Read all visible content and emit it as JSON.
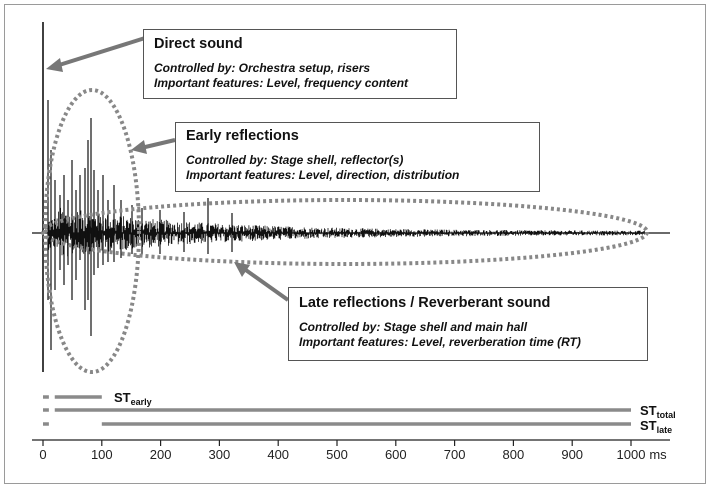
{
  "annotations": {
    "direct": {
      "title": "Direct sound",
      "controlled": "Controlled by: Orchestra setup, risers",
      "features": "Important features: Level, frequency content"
    },
    "early": {
      "title": "Early reflections",
      "controlled": "Controlled by: Stage shell, reflector(s)",
      "features": "Important features: Level, direction, distribution"
    },
    "late": {
      "title": "Late reflections / Reverberant sound",
      "controlled": "Controlled by: Stage shell and main hall",
      "features": "Important features: Level, reverberation time (RT)"
    }
  },
  "st_bars": [
    {
      "main": "ST",
      "sub": "early",
      "dash_ms": [
        0,
        10
      ],
      "bar_ms": [
        20,
        100
      ]
    },
    {
      "main": "ST",
      "sub": "total",
      "dash_ms": [
        0,
        10
      ],
      "bar_ms": [
        20,
        1000
      ]
    },
    {
      "main": "ST",
      "sub": "late",
      "dash_ms": [
        0,
        10
      ],
      "bar_ms": [
        100,
        1000
      ]
    }
  ],
  "axis": {
    "ticks": [
      "0",
      "100",
      "200",
      "300",
      "400",
      "500",
      "600",
      "700",
      "800",
      "900",
      "1000"
    ],
    "unit": "ms",
    "range_ms": [
      0,
      1000
    ]
  },
  "colors": {
    "waveform": "#111111",
    "ellipse": "#888888",
    "arrow": "#777777",
    "bar": "#8a8a8a"
  }
}
